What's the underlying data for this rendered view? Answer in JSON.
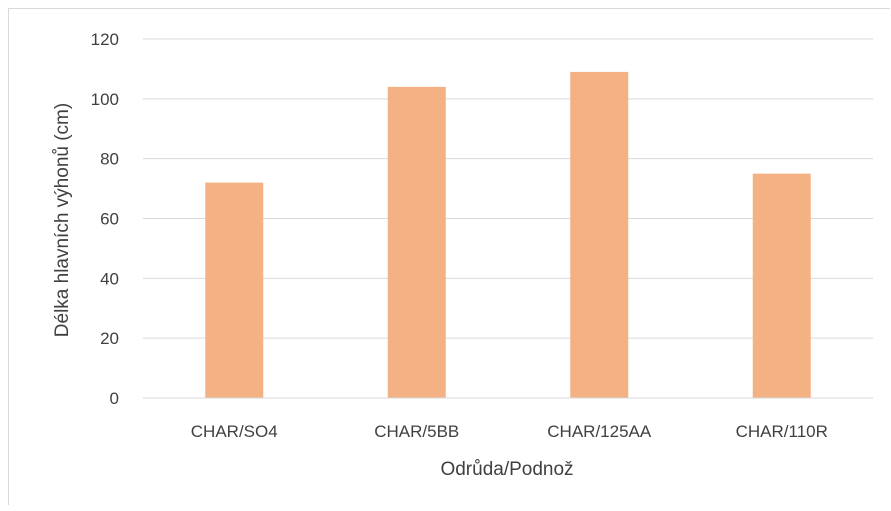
{
  "chart_data": {
    "type": "bar",
    "title": "",
    "xlabel": "Odrůda/Podnož",
    "ylabel": "Délka hlavních výhonů (cm)",
    "categories": [
      "CHAR/SO4",
      "CHAR/5BB",
      "CHAR/125AA",
      "CHAR/110R"
    ],
    "series": [
      {
        "values": [
          72,
          104,
          109,
          75
        ]
      }
    ],
    "ylim": [
      0,
      120
    ],
    "yticks": [
      "0",
      "20",
      "40",
      "60",
      "80",
      "100",
      "120"
    ],
    "grid": true,
    "legend": "none",
    "colors": {
      "bar": "#f4b183",
      "grid": "#d9d9d9",
      "text": "#404040"
    }
  }
}
